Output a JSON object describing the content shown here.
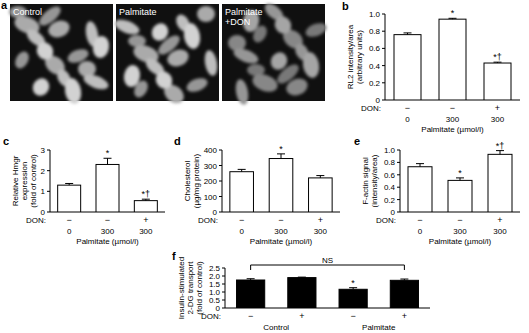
{
  "panel_a": {
    "label": "a",
    "captions": [
      [
        "Control"
      ],
      [
        "Palmitate"
      ],
      [
        "Palmitate",
        "+DON"
      ]
    ]
  },
  "chart_data": [
    {
      "type": "bar",
      "panel_label": "b",
      "y_label": [
        "RL2 intensity/area",
        "(arbitrary units)"
      ],
      "categories": [
        null,
        null,
        null
      ],
      "values": [
        0.76,
        0.94,
        0.43
      ],
      "errors": [
        0.02,
        0.01,
        0.01
      ],
      "bar_annotations": [
        null,
        "*",
        "*†"
      ],
      "color": "#ffffff",
      "ylim": [
        0,
        1
      ],
      "yticks": [
        0,
        0.2,
        0.4,
        0.6,
        0.8,
        {
          "value": 1,
          "label": "1.0"
        }
      ],
      "rows": [
        {
          "name": "DON:",
          "values": [
            "−",
            "−",
            "+"
          ]
        },
        {
          "name": "Palmitate (µmol/l)",
          "values": [
            0,
            300,
            300
          ]
        }
      ]
    },
    {
      "type": "bar",
      "panel_label": "c",
      "y_label": [
        "Relative Hmgr",
        "expression",
        "(fold of control)"
      ],
      "categories": [
        null,
        null,
        null
      ],
      "values": [
        1.3,
        2.3,
        0.55
      ],
      "errors": [
        0.08,
        0.3,
        0.07
      ],
      "bar_annotations": [
        null,
        "*",
        "*†"
      ],
      "color": "#ffffff",
      "ylim": [
        0,
        3
      ],
      "yticks": [
        0,
        1,
        2,
        3
      ],
      "rows": [
        {
          "name": "DON:",
          "values": [
            "−",
            "−",
            "+"
          ]
        },
        {
          "name": "Palmitate (µmol/l)",
          "values": [
            0,
            300,
            300
          ]
        }
      ]
    },
    {
      "type": "bar",
      "panel_label": "d",
      "y_label": [
        "Cholesterol",
        "(µg/mg protein)"
      ],
      "categories": [
        null,
        null,
        null
      ],
      "values": [
        260,
        345,
        220
      ],
      "errors": [
        15,
        30,
        15
      ],
      "bar_annotations": [
        null,
        "*",
        null
      ],
      "color": "#ffffff",
      "ylim": [
        0,
        400
      ],
      "yticks": [
        0,
        100,
        200,
        300,
        400
      ],
      "rows": [
        {
          "name": "DON:",
          "values": [
            "−",
            "−",
            "+"
          ]
        },
        {
          "name": "Palmitate (µmol/l)",
          "values": [
            0,
            300,
            300
          ]
        }
      ]
    },
    {
      "type": "bar",
      "panel_label": "e",
      "y_label": [
        "F-actin signal",
        "(intensity/area)"
      ],
      "categories": [
        null,
        null,
        null
      ],
      "values": [
        0.73,
        0.51,
        0.93
      ],
      "errors": [
        0.05,
        0.04,
        0.06
      ],
      "bar_annotations": [
        null,
        "*",
        "*†"
      ],
      "color": "#ffffff",
      "ylim": [
        0,
        1
      ],
      "yticks": [
        0,
        0.2,
        0.4,
        0.6,
        0.8,
        {
          "value": 1,
          "label": "1.0"
        }
      ],
      "rows": [
        {
          "name": "DON:",
          "values": [
            "−",
            "−",
            "+"
          ]
        },
        {
          "name": "Palmitate (µmol/l)",
          "values": [
            0,
            300,
            300
          ]
        }
      ]
    },
    {
      "type": "bar",
      "panel_label": "f",
      "y_label": [
        "Insulin-stimulated",
        "2-DG transport",
        "(fold of control)"
      ],
      "categories": [
        null,
        null,
        null,
        null
      ],
      "values": [
        1.75,
        1.9,
        1.17,
        1.73
      ],
      "errors": [
        0.08,
        0.03,
        0.1,
        0.08
      ],
      "bar_annotations": [
        null,
        null,
        "*",
        null
      ],
      "color": "#000000",
      "ylim": [
        0,
        2.5
      ],
      "yticks": [
        0,
        0.5,
        {
          "value": 1,
          "label": "1.0"
        },
        1.5,
        {
          "value": 2,
          "label": "2.0"
        },
        2.5
      ],
      "rows": [
        {
          "name": "DON:",
          "values": [
            "−",
            "+",
            "−",
            "+"
          ]
        }
      ],
      "groups": [
        "Control",
        "Palmitate"
      ],
      "bracket": {
        "label": "NS",
        "from": 0,
        "to": 3
      }
    }
  ]
}
